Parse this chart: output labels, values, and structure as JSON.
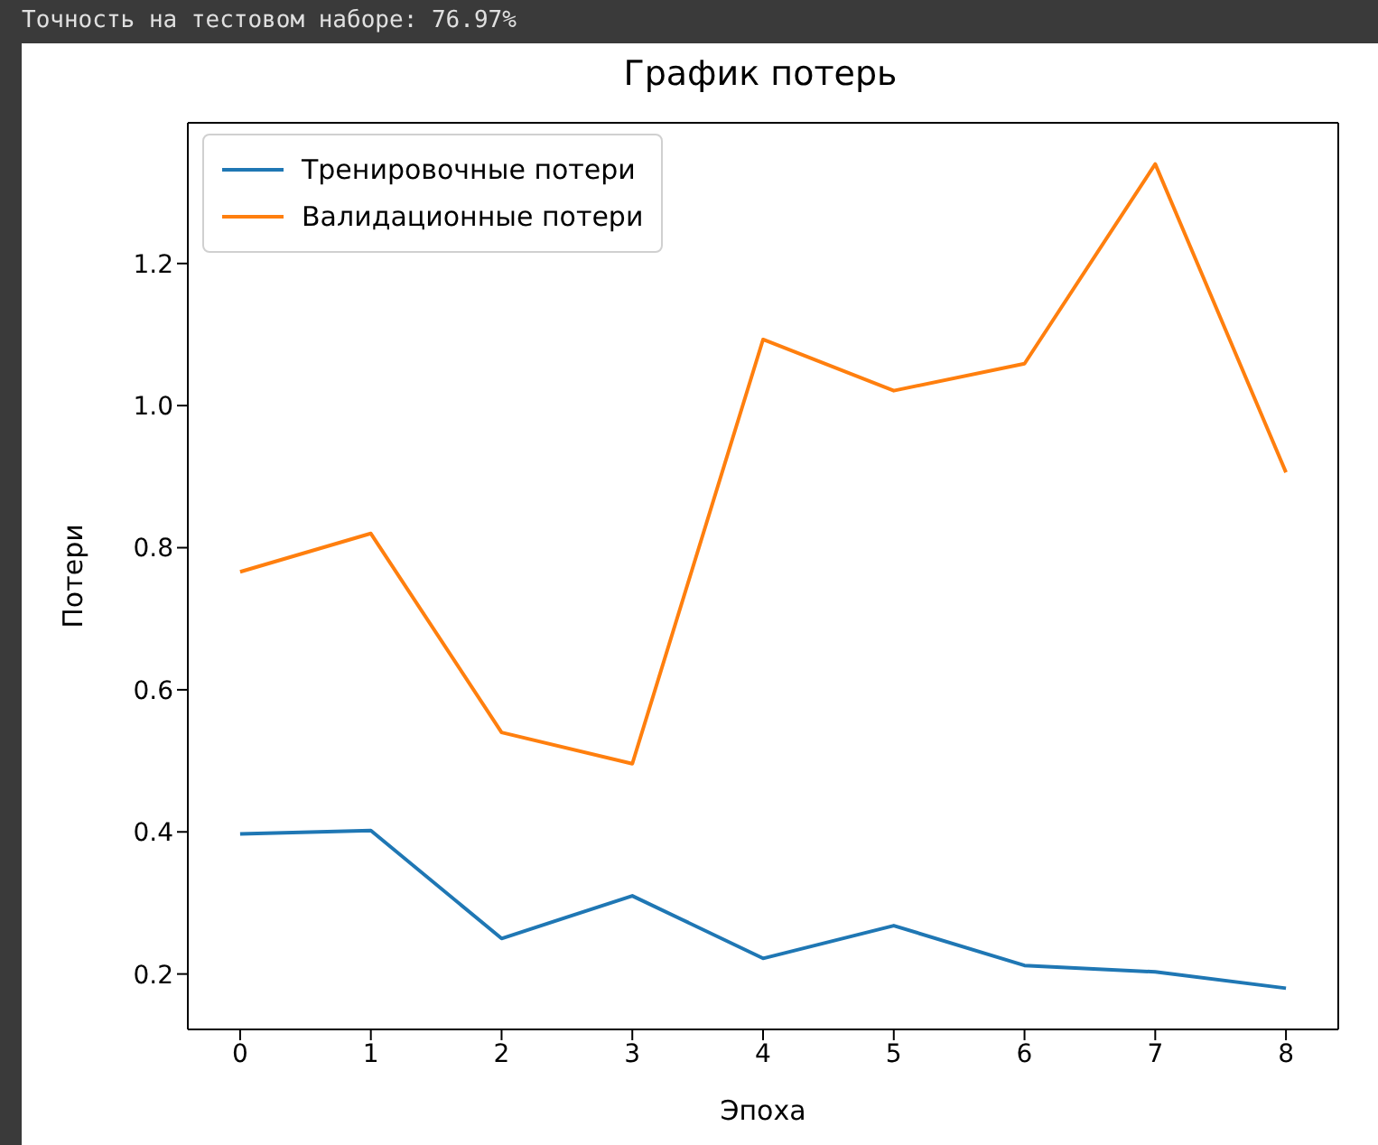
{
  "chart_data": {
    "type": "line",
    "title": "График потерь",
    "xlabel": "Эпоха",
    "ylabel": "Потери",
    "annotations": [
      "Точность на тестовом наборе: 76.97%"
    ],
    "x": [
      0,
      1,
      2,
      3,
      4,
      5,
      6,
      7,
      8
    ],
    "series": [
      {
        "name": "Тренировочные потери",
        "color": "#1f77b4",
        "values": [
          0.397,
          0.402,
          0.25,
          0.31,
          0.222,
          0.268,
          0.212,
          0.203,
          0.18
        ]
      },
      {
        "name": "Валидационные потери",
        "color": "#ff7f0e",
        "values": [
          0.766,
          0.82,
          0.54,
          0.496,
          1.093,
          1.021,
          1.059,
          1.34,
          0.906
        ]
      }
    ],
    "xlim": [
      -0.4,
      8.4
    ],
    "xticks": [
      0,
      1,
      2,
      3,
      4,
      5,
      6,
      7,
      8
    ],
    "ylim": [
      0.122,
      1.398
    ],
    "yticks": [
      0.2,
      0.4,
      0.6,
      0.8,
      {
        "value": 1,
        "label": "1.0"
      },
      1.2
    ],
    "grid": false,
    "legend": "top left",
    "marker": "none",
    "line_style": "solid"
  }
}
